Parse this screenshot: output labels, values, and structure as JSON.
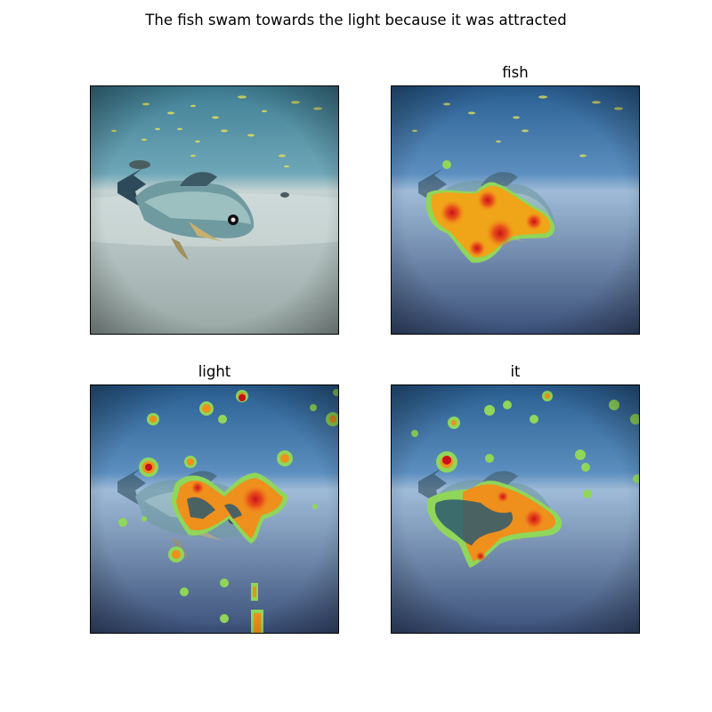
{
  "figure": {
    "title": "The fish swam towards the light because it was attracted"
  },
  "panels": [
    {
      "title": ""
    },
    {
      "title": "fish"
    },
    {
      "title": "light"
    },
    {
      "title": "it"
    }
  ],
  "colors": {
    "water_top": "#2e6fa0",
    "water_original": "#5f9bb0",
    "sand": "#c9d8dc",
    "heat_hot": "#d7261e",
    "heat_warm": "#f08c1c",
    "heat_edge": "#8fd65a"
  }
}
